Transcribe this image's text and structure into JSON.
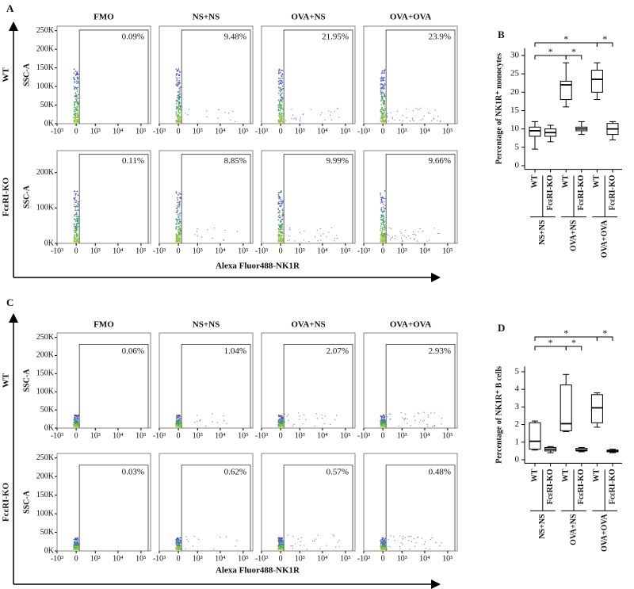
{
  "panels": [
    {
      "letter": "A",
      "columns": [
        "FMO",
        "NS+NS",
        "OVA+NS",
        "OVA+OVA"
      ],
      "x_label": "Alexa Fluor488-NK1R",
      "xlim": [
        -1000,
        262144
      ],
      "ylim": [
        0,
        262144
      ],
      "xticks": [
        {
          "value": -1000,
          "label": "-10³"
        },
        0,
        {
          "value": 1000,
          "label": "10³"
        },
        {
          "value": 10000,
          "label": "10⁴"
        },
        {
          "value": 100000,
          "label": "10⁵"
        }
      ],
      "rows": [
        {
          "label": "WT",
          "y_label": "SSC-A",
          "gates": [
            "0.09%",
            "9.48%",
            "21.95%",
            "23.9%"
          ],
          "yticks": [
            {
              "value": 0,
              "label": "0K"
            },
            {
              "value": 50000,
              "label": "50K"
            },
            {
              "value": 100000,
              "label": "100K"
            },
            {
              "value": 150000,
              "label": "150K"
            },
            {
              "value": 200000,
              "label": "200K"
            },
            {
              "value": 250000,
              "label": "250K"
            }
          ]
        },
        {
          "label": "FcεRI-KO",
          "y_label": "SSC-A",
          "gates": [
            "0.11%",
            "8.85%",
            "9.99%",
            "9.66%"
          ],
          "yticks": [
            {
              "value": 0,
              "label": "0K"
            },
            {
              "value": 100000,
              "label": "100K"
            },
            {
              "value": 200000,
              "label": "200K"
            }
          ]
        }
      ]
    },
    {
      "letter": "C",
      "columns": [
        "FMO",
        "NS+NS",
        "OVA+NS",
        "OVA+OVA"
      ],
      "x_label": "Alexa Fluor488-NK1R",
      "xlim": [
        -1000,
        262144
      ],
      "ylim": [
        0,
        262144
      ],
      "xticks": [
        {
          "value": -1000,
          "label": "-10³"
        },
        0,
        {
          "value": 1000,
          "label": "10³"
        },
        {
          "value": 10000,
          "label": "10⁴"
        },
        {
          "value": 100000,
          "label": "10⁵"
        }
      ],
      "rows": [
        {
          "label": "WT",
          "y_label": "SSC-A",
          "gates": [
            "0.06%",
            "1.04%",
            "2.07%",
            "2.93%"
          ],
          "yticks": [
            {
              "value": 0,
              "label": "0K"
            },
            {
              "value": 50000,
              "label": "50K"
            },
            {
              "value": 100000,
              "label": "100K"
            },
            {
              "value": 150000,
              "label": "150K"
            },
            {
              "value": 200000,
              "label": "200K"
            },
            {
              "value": 250000,
              "label": "250K"
            }
          ]
        },
        {
          "label": "FcεRI-KO",
          "y_label": "SSC-A",
          "gates": [
            "0.03%",
            "0.62%",
            "0.57%",
            "0.48%"
          ],
          "yticks": [
            {
              "value": 0,
              "label": "0K"
            },
            {
              "value": 50000,
              "label": "50K"
            },
            {
              "value": 100000,
              "label": "100K"
            },
            {
              "value": 150000,
              "label": "150K"
            },
            {
              "value": 200000,
              "label": "200K"
            },
            {
              "value": 250000,
              "label": "250K"
            }
          ]
        }
      ]
    }
  ],
  "chart_data": [
    {
      "type": "box",
      "letter": "B",
      "y_label": "Percentage of NK1R⁺ monocytes",
      "categories": [
        "WT",
        "FcεRI-KO",
        "WT",
        "FcεRI-KO",
        "WT",
        "FcεRI-KO"
      ],
      "groups": [
        "NS+NS",
        "OVA+NS",
        "OVA+OVA"
      ],
      "boxes": [
        {
          "min": 4.5,
          "q1": 8,
          "median": 9.5,
          "q3": 10.5,
          "max": 12
        },
        {
          "min": 6.5,
          "q1": 8,
          "median": 9,
          "q3": 10,
          "max": 11
        },
        {
          "min": 16,
          "q1": 18,
          "median": 22,
          "q3": 23,
          "max": 28
        },
        {
          "min": 8.5,
          "q1": 9.5,
          "median": 10,
          "q3": 10.5,
          "max": 12
        },
        {
          "min": 18,
          "q1": 20,
          "median": 23.5,
          "q3": 26,
          "max": 28
        },
        {
          "min": 7,
          "q1": 8.5,
          "median": 10,
          "q3": 11.5,
          "max": 12
        }
      ],
      "ylim": [
        -1,
        32
      ],
      "yticks": [
        0,
        5,
        10,
        15,
        20,
        25,
        30
      ],
      "color": "#000000",
      "significance": [
        "*",
        "*",
        "*",
        "*"
      ]
    },
    {
      "type": "box",
      "letter": "D",
      "y_label": "Percentage of NK1R⁺ B cells",
      "categories": [
        "WT",
        "FcεRI-KO",
        "WT",
        "FcεRI-KO",
        "WT",
        "FcεRI-KO"
      ],
      "groups": [
        "NS+NS",
        "OVA+NS",
        "OVA+OVA"
      ],
      "boxes": [
        {
          "min": 0.55,
          "q1": 0.6,
          "median": 1.05,
          "q3": 2.1,
          "max": 2.2
        },
        {
          "min": 0.4,
          "q1": 0.5,
          "median": 0.6,
          "q3": 0.7,
          "max": 0.75
        },
        {
          "min": 1.6,
          "q1": 1.65,
          "median": 2.05,
          "q3": 4.25,
          "max": 4.85
        },
        {
          "min": 0.45,
          "q1": 0.5,
          "median": 0.55,
          "q3": 0.65,
          "max": 0.7
        },
        {
          "min": 1.85,
          "q1": 2.1,
          "median": 2.95,
          "q3": 3.7,
          "max": 3.8
        },
        {
          "min": 0.4,
          "q1": 0.45,
          "median": 0.5,
          "q3": 0.55,
          "max": 0.6
        }
      ],
      "ylim": [
        -0.2,
        5.3
      ],
      "yticks": [
        0,
        1,
        2,
        3,
        4,
        5
      ],
      "color": "#000000",
      "significance": [
        "*",
        "*",
        "*",
        "*"
      ]
    }
  ]
}
